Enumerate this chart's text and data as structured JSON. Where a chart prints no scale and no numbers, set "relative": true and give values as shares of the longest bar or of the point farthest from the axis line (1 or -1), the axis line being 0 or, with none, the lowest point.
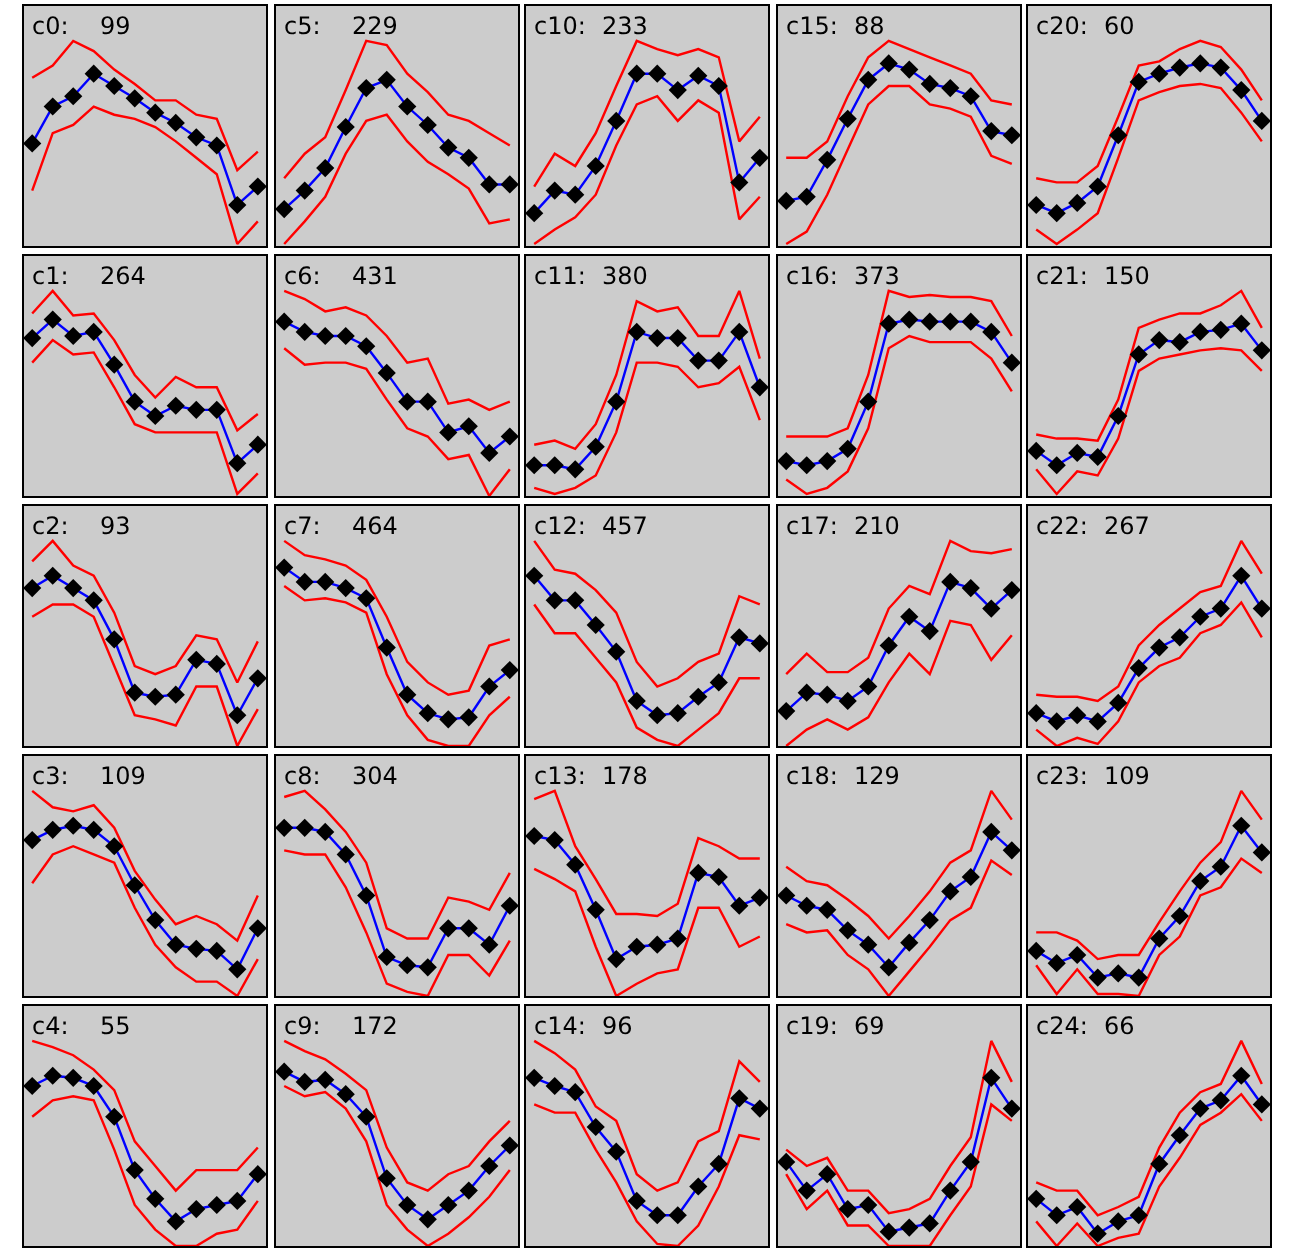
{
  "chart_data": [
    {
      "type": "line",
      "title": "c0:",
      "subtitle": "99",
      "relative": true,
      "categories": [
        null,
        null,
        null,
        null,
        null,
        null,
        null,
        null,
        null,
        null,
        null,
        null
      ],
      "series": [
        {
          "color": "#ff0000",
          "marker": "none",
          "values": [
            0.82,
            0.88,
            1.0,
            0.95,
            0.86,
            0.79,
            0.71,
            0.71,
            0.64,
            0.62,
            0.37,
            0.46
          ]
        },
        {
          "color": "#ff0000",
          "marker": "none",
          "values": [
            0.27,
            0.55,
            0.59,
            0.68,
            0.64,
            0.62,
            0.58,
            0.51,
            0.43,
            0.35,
            0.01,
            0.12
          ]
        },
        {
          "color": "#0000ff",
          "marker": "diamond",
          "values": [
            0.5,
            0.68,
            0.73,
            0.84,
            0.78,
            0.72,
            0.65,
            0.6,
            0.53,
            0.49,
            0.2,
            0.29
          ]
        }
      ]
    },
    {
      "type": "line",
      "title": "c5:",
      "subtitle": "229",
      "relative": true,
      "categories": [
        null,
        null,
        null,
        null,
        null,
        null,
        null,
        null,
        null,
        null,
        null,
        null
      ],
      "series": [
        {
          "color": "#ff0000",
          "marker": "none",
          "values": [
            0.33,
            0.45,
            0.53,
            0.76,
            1.0,
            0.98,
            0.84,
            0.75,
            0.64,
            0.61,
            0.55,
            0.49
          ]
        },
        {
          "color": "#ff0000",
          "marker": "none",
          "values": [
            0.01,
            0.12,
            0.24,
            0.45,
            0.61,
            0.64,
            0.51,
            0.41,
            0.35,
            0.28,
            0.11,
            0.13
          ]
        },
        {
          "color": "#0000ff",
          "marker": "diamond",
          "values": [
            0.18,
            0.27,
            0.38,
            0.58,
            0.77,
            0.81,
            0.68,
            0.59,
            0.48,
            0.43,
            0.3,
            0.3
          ]
        }
      ]
    },
    {
      "type": "line",
      "title": "c10:",
      "subtitle": "233",
      "relative": true,
      "categories": [
        null,
        null,
        null,
        null,
        null,
        null,
        null,
        null,
        null,
        null,
        null,
        null
      ],
      "series": [
        {
          "color": "#ff0000",
          "marker": "none",
          "values": [
            0.29,
            0.45,
            0.39,
            0.55,
            0.78,
            1.0,
            0.96,
            0.93,
            0.96,
            0.92,
            0.51,
            0.63
          ]
        },
        {
          "color": "#ff0000",
          "marker": "none",
          "values": [
            0.01,
            0.08,
            0.14,
            0.25,
            0.49,
            0.69,
            0.73,
            0.61,
            0.71,
            0.65,
            0.13,
            0.24
          ]
        },
        {
          "color": "#0000ff",
          "marker": "diamond",
          "values": [
            0.16,
            0.27,
            0.25,
            0.39,
            0.61,
            0.84,
            0.84,
            0.76,
            0.83,
            0.78,
            0.31,
            0.43
          ]
        }
      ]
    },
    {
      "type": "line",
      "title": "c15:",
      "subtitle": "88",
      "relative": true,
      "categories": [
        null,
        null,
        null,
        null,
        null,
        null,
        null,
        null,
        null,
        null,
        null,
        null
      ],
      "series": [
        {
          "color": "#ff0000",
          "marker": "none",
          "values": [
            0.43,
            0.43,
            0.51,
            0.73,
            0.92,
            1.0,
            0.96,
            0.92,
            0.88,
            0.84,
            0.71,
            0.69
          ]
        },
        {
          "color": "#ff0000",
          "marker": "none",
          "values": [
            0.01,
            0.07,
            0.25,
            0.47,
            0.69,
            0.78,
            0.78,
            0.69,
            0.67,
            0.63,
            0.44,
            0.4
          ]
        },
        {
          "color": "#0000ff",
          "marker": "diamond",
          "values": [
            0.22,
            0.24,
            0.42,
            0.62,
            0.81,
            0.89,
            0.86,
            0.79,
            0.77,
            0.73,
            0.56,
            0.54
          ]
        }
      ]
    },
    {
      "type": "line",
      "title": "c20:",
      "subtitle": "60",
      "relative": true,
      "categories": [
        null,
        null,
        null,
        null,
        null,
        null,
        null,
        null,
        null,
        null,
        null,
        null
      ],
      "series": [
        {
          "color": "#ff0000",
          "marker": "none",
          "values": [
            0.33,
            0.31,
            0.31,
            0.39,
            0.63,
            0.88,
            0.9,
            0.96,
            1.0,
            0.97,
            0.86,
            0.71
          ]
        },
        {
          "color": "#ff0000",
          "marker": "none",
          "values": [
            0.08,
            0.01,
            0.08,
            0.16,
            0.43,
            0.71,
            0.75,
            0.78,
            0.79,
            0.77,
            0.65,
            0.51
          ]
        },
        {
          "color": "#0000ff",
          "marker": "diamond",
          "values": [
            0.2,
            0.16,
            0.21,
            0.29,
            0.54,
            0.8,
            0.84,
            0.87,
            0.89,
            0.87,
            0.76,
            0.61
          ]
        }
      ]
    },
    {
      "type": "line",
      "title": "c1:",
      "subtitle": "264",
      "relative": true,
      "categories": [
        null,
        null,
        null,
        null,
        null,
        null,
        null,
        null,
        null,
        null,
        null,
        null
      ],
      "series": [
        {
          "color": "#ff0000",
          "marker": "none",
          "values": [
            0.89,
            1.0,
            0.88,
            0.89,
            0.76,
            0.59,
            0.48,
            0.58,
            0.53,
            0.53,
            0.32,
            0.4
          ]
        },
        {
          "color": "#ff0000",
          "marker": "none",
          "values": [
            0.65,
            0.76,
            0.69,
            0.7,
            0.53,
            0.35,
            0.31,
            0.31,
            0.31,
            0.31,
            0.01,
            0.11
          ]
        },
        {
          "color": "#0000ff",
          "marker": "diamond",
          "values": [
            0.77,
            0.86,
            0.78,
            0.8,
            0.64,
            0.46,
            0.39,
            0.44,
            0.42,
            0.42,
            0.16,
            0.25
          ]
        }
      ]
    },
    {
      "type": "line",
      "title": "c6:",
      "subtitle": "431",
      "relative": true,
      "categories": [
        null,
        null,
        null,
        null,
        null,
        null,
        null,
        null,
        null,
        null,
        null,
        null
      ],
      "series": [
        {
          "color": "#ff0000",
          "marker": "none",
          "values": [
            1.0,
            0.96,
            0.9,
            0.92,
            0.88,
            0.78,
            0.65,
            0.67,
            0.45,
            0.47,
            0.42,
            0.46
          ]
        },
        {
          "color": "#ff0000",
          "marker": "none",
          "values": [
            0.72,
            0.64,
            0.65,
            0.65,
            0.62,
            0.47,
            0.33,
            0.29,
            0.18,
            0.2,
            0.0,
            0.13
          ]
        },
        {
          "color": "#0000ff",
          "marker": "diamond",
          "values": [
            0.85,
            0.8,
            0.78,
            0.78,
            0.73,
            0.6,
            0.46,
            0.46,
            0.31,
            0.34,
            0.21,
            0.29
          ]
        }
      ]
    },
    {
      "type": "line",
      "title": "c11:",
      "subtitle": "380",
      "relative": true,
      "categories": [
        null,
        null,
        null,
        null,
        null,
        null,
        null,
        null,
        null,
        null,
        null,
        null
      ],
      "series": [
        {
          "color": "#ff0000",
          "marker": "none",
          "values": [
            0.25,
            0.27,
            0.23,
            0.35,
            0.59,
            0.95,
            0.9,
            0.92,
            0.78,
            0.78,
            1.0,
            0.67
          ]
        },
        {
          "color": "#ff0000",
          "marker": "none",
          "values": [
            0.04,
            0.01,
            0.04,
            0.1,
            0.31,
            0.65,
            0.65,
            0.63,
            0.53,
            0.55,
            0.63,
            0.37
          ]
        },
        {
          "color": "#0000ff",
          "marker": "diamond",
          "values": [
            0.15,
            0.15,
            0.13,
            0.24,
            0.46,
            0.8,
            0.77,
            0.77,
            0.66,
            0.66,
            0.8,
            0.53
          ]
        }
      ]
    },
    {
      "type": "line",
      "title": "c16:",
      "subtitle": "373",
      "relative": true,
      "categories": [
        null,
        null,
        null,
        null,
        null,
        null,
        null,
        null,
        null,
        null,
        null,
        null
      ],
      "series": [
        {
          "color": "#ff0000",
          "marker": "none",
          "values": [
            0.29,
            0.29,
            0.29,
            0.33,
            0.59,
            1.0,
            0.97,
            0.98,
            0.97,
            0.97,
            0.95,
            0.78
          ]
        },
        {
          "color": "#ff0000",
          "marker": "none",
          "values": [
            0.08,
            0.01,
            0.04,
            0.12,
            0.33,
            0.72,
            0.78,
            0.75,
            0.75,
            0.75,
            0.67,
            0.51
          ]
        },
        {
          "color": "#0000ff",
          "marker": "diamond",
          "values": [
            0.17,
            0.15,
            0.17,
            0.23,
            0.46,
            0.84,
            0.86,
            0.85,
            0.85,
            0.85,
            0.8,
            0.65
          ]
        }
      ]
    },
    {
      "type": "line",
      "title": "c21:",
      "subtitle": "150",
      "relative": true,
      "categories": [
        null,
        null,
        null,
        null,
        null,
        null,
        null,
        null,
        null,
        null,
        null,
        null
      ],
      "series": [
        {
          "color": "#ff0000",
          "marker": "none",
          "values": [
            0.3,
            0.28,
            0.28,
            0.27,
            0.47,
            0.82,
            0.86,
            0.89,
            0.89,
            0.93,
            1.0,
            0.82
          ]
        },
        {
          "color": "#ff0000",
          "marker": "none",
          "values": [
            0.13,
            0.01,
            0.12,
            0.1,
            0.28,
            0.61,
            0.67,
            0.69,
            0.71,
            0.72,
            0.71,
            0.61
          ]
        },
        {
          "color": "#0000ff",
          "marker": "diamond",
          "values": [
            0.22,
            0.15,
            0.21,
            0.19,
            0.39,
            0.69,
            0.76,
            0.75,
            0.8,
            0.81,
            0.84,
            0.71
          ]
        }
      ]
    },
    {
      "type": "line",
      "title": "c2:",
      "subtitle": "93",
      "relative": true,
      "categories": [
        null,
        null,
        null,
        null,
        null,
        null,
        null,
        null,
        null,
        null,
        null,
        null
      ],
      "series": [
        {
          "color": "#ff0000",
          "marker": "none",
          "values": [
            0.9,
            1.0,
            0.88,
            0.83,
            0.65,
            0.39,
            0.35,
            0.39,
            0.54,
            0.52,
            0.31,
            0.51
          ]
        },
        {
          "color": "#ff0000",
          "marker": "none",
          "values": [
            0.63,
            0.69,
            0.69,
            0.63,
            0.39,
            0.15,
            0.13,
            0.1,
            0.29,
            0.29,
            0.0,
            0.18
          ]
        },
        {
          "color": "#0000ff",
          "marker": "diamond",
          "values": [
            0.77,
            0.83,
            0.77,
            0.71,
            0.52,
            0.26,
            0.24,
            0.25,
            0.42,
            0.4,
            0.15,
            0.33
          ]
        }
      ]
    },
    {
      "type": "line",
      "title": "c7:",
      "subtitle": "464",
      "relative": true,
      "categories": [
        null,
        null,
        null,
        null,
        null,
        null,
        null,
        null,
        null,
        null,
        null,
        null
      ],
      "series": [
        {
          "color": "#ff0000",
          "marker": "none",
          "values": [
            1.0,
            0.93,
            0.91,
            0.88,
            0.81,
            0.63,
            0.41,
            0.31,
            0.25,
            0.27,
            0.49,
            0.52
          ]
        },
        {
          "color": "#ff0000",
          "marker": "none",
          "values": [
            0.78,
            0.71,
            0.72,
            0.7,
            0.65,
            0.35,
            0.15,
            0.03,
            0.0,
            0.0,
            0.15,
            0.24
          ]
        },
        {
          "color": "#0000ff",
          "marker": "diamond",
          "values": [
            0.87,
            0.8,
            0.8,
            0.77,
            0.72,
            0.48,
            0.25,
            0.16,
            0.13,
            0.14,
            0.29,
            0.37
          ]
        }
      ]
    },
    {
      "type": "line",
      "title": "c12:",
      "subtitle": "457",
      "relative": true,
      "categories": [
        null,
        null,
        null,
        null,
        null,
        null,
        null,
        null,
        null,
        null,
        null,
        null
      ],
      "series": [
        {
          "color": "#ff0000",
          "marker": "none",
          "values": [
            1.0,
            0.86,
            0.84,
            0.76,
            0.65,
            0.41,
            0.29,
            0.33,
            0.41,
            0.45,
            0.73,
            0.69
          ]
        },
        {
          "color": "#ff0000",
          "marker": "none",
          "values": [
            0.69,
            0.55,
            0.55,
            0.43,
            0.31,
            0.09,
            0.03,
            0.0,
            0.08,
            0.16,
            0.33,
            0.33
          ]
        },
        {
          "color": "#0000ff",
          "marker": "diamond",
          "values": [
            0.83,
            0.71,
            0.71,
            0.59,
            0.46,
            0.22,
            0.15,
            0.16,
            0.24,
            0.31,
            0.53,
            0.5
          ]
        }
      ]
    },
    {
      "type": "line",
      "title": "c17:",
      "subtitle": "210",
      "relative": true,
      "categories": [
        null,
        null,
        null,
        null,
        null,
        null,
        null,
        null,
        null,
        null,
        null,
        null
      ],
      "series": [
        {
          "color": "#ff0000",
          "marker": "none",
          "values": [
            0.35,
            0.45,
            0.36,
            0.36,
            0.43,
            0.67,
            0.78,
            0.74,
            1.0,
            0.95,
            0.94,
            0.96
          ]
        },
        {
          "color": "#ff0000",
          "marker": "none",
          "values": [
            0.0,
            0.08,
            0.13,
            0.08,
            0.14,
            0.31,
            0.45,
            0.35,
            0.61,
            0.59,
            0.42,
            0.54
          ]
        },
        {
          "color": "#0000ff",
          "marker": "diamond",
          "values": [
            0.17,
            0.26,
            0.25,
            0.22,
            0.29,
            0.49,
            0.63,
            0.56,
            0.8,
            0.77,
            0.67,
            0.76
          ]
        }
      ]
    },
    {
      "type": "line",
      "title": "c22:",
      "subtitle": "267",
      "relative": true,
      "categories": [
        null,
        null,
        null,
        null,
        null,
        null,
        null,
        null,
        null,
        null,
        null,
        null
      ],
      "series": [
        {
          "color": "#ff0000",
          "marker": "none",
          "values": [
            0.25,
            0.24,
            0.24,
            0.22,
            0.29,
            0.49,
            0.59,
            0.67,
            0.75,
            0.78,
            1.0,
            0.84
          ]
        },
        {
          "color": "#ff0000",
          "marker": "none",
          "values": [
            0.08,
            0.0,
            0.04,
            0.01,
            0.12,
            0.31,
            0.39,
            0.43,
            0.55,
            0.59,
            0.7,
            0.53
          ]
        },
        {
          "color": "#0000ff",
          "marker": "diamond",
          "values": [
            0.16,
            0.12,
            0.15,
            0.12,
            0.21,
            0.38,
            0.48,
            0.53,
            0.63,
            0.67,
            0.83,
            0.67
          ]
        }
      ]
    },
    {
      "type": "line",
      "title": "c3:",
      "subtitle": "109",
      "relative": true,
      "categories": [
        null,
        null,
        null,
        null,
        null,
        null,
        null,
        null,
        null,
        null,
        null,
        null
      ],
      "series": [
        {
          "color": "#ff0000",
          "marker": "none",
          "values": [
            1.0,
            0.92,
            0.9,
            0.93,
            0.82,
            0.61,
            0.47,
            0.35,
            0.39,
            0.35,
            0.27,
            0.49
          ]
        },
        {
          "color": "#ff0000",
          "marker": "none",
          "values": [
            0.55,
            0.69,
            0.73,
            0.69,
            0.65,
            0.43,
            0.25,
            0.14,
            0.07,
            0.07,
            0.0,
            0.18
          ]
        },
        {
          "color": "#0000ff",
          "marker": "diamond",
          "values": [
            0.76,
            0.81,
            0.83,
            0.81,
            0.73,
            0.54,
            0.37,
            0.25,
            0.23,
            0.22,
            0.13,
            0.33
          ]
        }
      ]
    },
    {
      "type": "line",
      "title": "c8:",
      "subtitle": "304",
      "relative": true,
      "categories": [
        null,
        null,
        null,
        null,
        null,
        null,
        null,
        null,
        null,
        null,
        null,
        null
      ],
      "series": [
        {
          "color": "#ff0000",
          "marker": "none",
          "values": [
            0.97,
            1.0,
            0.91,
            0.8,
            0.65,
            0.33,
            0.28,
            0.28,
            0.48,
            0.46,
            0.42,
            0.6
          ]
        },
        {
          "color": "#ff0000",
          "marker": "none",
          "values": [
            0.71,
            0.69,
            0.69,
            0.53,
            0.31,
            0.06,
            0.02,
            0.0,
            0.2,
            0.2,
            0.1,
            0.27
          ]
        },
        {
          "color": "#0000ff",
          "marker": "diamond",
          "values": [
            0.82,
            0.82,
            0.8,
            0.69,
            0.49,
            0.19,
            0.15,
            0.14,
            0.33,
            0.33,
            0.25,
            0.44
          ]
        }
      ]
    },
    {
      "type": "line",
      "title": "c13:",
      "subtitle": "178",
      "relative": true,
      "categories": [
        null,
        null,
        null,
        null,
        null,
        null,
        null,
        null,
        null,
        null,
        null,
        null
      ],
      "series": [
        {
          "color": "#ff0000",
          "marker": "none",
          "values": [
            0.96,
            1.0,
            0.73,
            0.57,
            0.4,
            0.4,
            0.39,
            0.45,
            0.77,
            0.73,
            0.67,
            0.67
          ]
        },
        {
          "color": "#ff0000",
          "marker": "none",
          "values": [
            0.62,
            0.57,
            0.51,
            0.24,
            0.0,
            0.06,
            0.11,
            0.13,
            0.43,
            0.43,
            0.24,
            0.29
          ]
        },
        {
          "color": "#0000ff",
          "marker": "diamond",
          "values": [
            0.78,
            0.76,
            0.64,
            0.42,
            0.18,
            0.24,
            0.25,
            0.28,
            0.6,
            0.58,
            0.44,
            0.48
          ]
        }
      ]
    },
    {
      "type": "line",
      "title": "c18:",
      "subtitle": "129",
      "relative": true,
      "categories": [
        null,
        null,
        null,
        null,
        null,
        null,
        null,
        null,
        null,
        null,
        null,
        null
      ],
      "series": [
        {
          "color": "#ff0000",
          "marker": "none",
          "values": [
            0.63,
            0.56,
            0.54,
            0.47,
            0.39,
            0.28,
            0.39,
            0.51,
            0.65,
            0.71,
            1.0,
            0.86
          ]
        },
        {
          "color": "#ff0000",
          "marker": "none",
          "values": [
            0.35,
            0.31,
            0.32,
            0.2,
            0.13,
            0.0,
            0.12,
            0.24,
            0.37,
            0.43,
            0.66,
            0.59
          ]
        },
        {
          "color": "#0000ff",
          "marker": "diamond",
          "values": [
            0.49,
            0.44,
            0.42,
            0.32,
            0.25,
            0.14,
            0.26,
            0.37,
            0.51,
            0.58,
            0.8,
            0.71
          ]
        }
      ]
    },
    {
      "type": "line",
      "title": "c23:",
      "subtitle": "109",
      "relative": true,
      "categories": [
        null,
        null,
        null,
        null,
        null,
        null,
        null,
        null,
        null,
        null,
        null,
        null
      ],
      "series": [
        {
          "color": "#ff0000",
          "marker": "none",
          "values": [
            0.31,
            0.31,
            0.27,
            0.18,
            0.2,
            0.2,
            0.36,
            0.51,
            0.65,
            0.75,
            1.0,
            0.86
          ]
        },
        {
          "color": "#ff0000",
          "marker": "none",
          "values": [
            0.15,
            0.01,
            0.13,
            0.01,
            0.01,
            0.0,
            0.2,
            0.29,
            0.49,
            0.53,
            0.67,
            0.6
          ]
        },
        {
          "color": "#0000ff",
          "marker": "diamond",
          "values": [
            0.22,
            0.16,
            0.2,
            0.09,
            0.11,
            0.09,
            0.28,
            0.39,
            0.56,
            0.63,
            0.83,
            0.7
          ]
        }
      ]
    },
    {
      "type": "line",
      "title": "c4:",
      "subtitle": "55",
      "relative": true,
      "categories": [
        null,
        null,
        null,
        null,
        null,
        null,
        null,
        null,
        null,
        null,
        null,
        null
      ],
      "series": [
        {
          "color": "#ff0000",
          "marker": "none",
          "values": [
            1.0,
            0.97,
            0.93,
            0.86,
            0.76,
            0.51,
            0.39,
            0.27,
            0.37,
            0.37,
            0.37,
            0.48
          ]
        },
        {
          "color": "#ff0000",
          "marker": "none",
          "values": [
            0.63,
            0.71,
            0.73,
            0.71,
            0.47,
            0.2,
            0.08,
            0.0,
            0.0,
            0.06,
            0.08,
            0.22
          ]
        },
        {
          "color": "#0000ff",
          "marker": "diamond",
          "values": [
            0.78,
            0.83,
            0.82,
            0.78,
            0.63,
            0.37,
            0.23,
            0.12,
            0.18,
            0.2,
            0.22,
            0.35
          ]
        }
      ]
    },
    {
      "type": "line",
      "title": "c9:",
      "subtitle": "172",
      "relative": true,
      "categories": [
        null,
        null,
        null,
        null,
        null,
        null,
        null,
        null,
        null,
        null,
        null,
        null
      ],
      "series": [
        {
          "color": "#ff0000",
          "marker": "none",
          "values": [
            1.0,
            0.95,
            0.91,
            0.84,
            0.76,
            0.48,
            0.31,
            0.27,
            0.35,
            0.39,
            0.51,
            0.61
          ]
        },
        {
          "color": "#ff0000",
          "marker": "none",
          "values": [
            0.78,
            0.73,
            0.75,
            0.67,
            0.51,
            0.2,
            0.08,
            0.0,
            0.06,
            0.14,
            0.24,
            0.37
          ]
        },
        {
          "color": "#0000ff",
          "marker": "diamond",
          "values": [
            0.85,
            0.8,
            0.81,
            0.74,
            0.63,
            0.33,
            0.2,
            0.13,
            0.2,
            0.27,
            0.39,
            0.49
          ]
        }
      ]
    },
    {
      "type": "line",
      "title": "c14:",
      "subtitle": "96",
      "relative": true,
      "categories": [
        null,
        null,
        null,
        null,
        null,
        null,
        null,
        null,
        null,
        null,
        null,
        null
      ],
      "series": [
        {
          "color": "#ff0000",
          "marker": "none",
          "values": [
            1.0,
            0.94,
            0.86,
            0.68,
            0.61,
            0.35,
            0.27,
            0.31,
            0.51,
            0.56,
            0.9,
            0.8
          ]
        },
        {
          "color": "#ff0000",
          "marker": "none",
          "values": [
            0.69,
            0.65,
            0.65,
            0.47,
            0.31,
            0.12,
            0.01,
            0.0,
            0.1,
            0.29,
            0.54,
            0.52
          ]
        },
        {
          "color": "#0000ff",
          "marker": "diamond",
          "values": [
            0.82,
            0.78,
            0.75,
            0.58,
            0.46,
            0.22,
            0.15,
            0.15,
            0.29,
            0.4,
            0.72,
            0.67
          ]
        }
      ]
    },
    {
      "type": "line",
      "title": "c19:",
      "subtitle": "69",
      "relative": true,
      "categories": [
        null,
        null,
        null,
        null,
        null,
        null,
        null,
        null,
        null,
        null,
        null,
        null
      ],
      "series": [
        {
          "color": "#ff0000",
          "marker": "none",
          "values": [
            0.47,
            0.39,
            0.43,
            0.27,
            0.27,
            0.16,
            0.18,
            0.23,
            0.39,
            0.53,
            1.0,
            0.8
          ]
        },
        {
          "color": "#ff0000",
          "marker": "none",
          "values": [
            0.35,
            0.18,
            0.27,
            0.1,
            0.1,
            0.0,
            0.0,
            0.0,
            0.15,
            0.29,
            0.69,
            0.61
          ]
        },
        {
          "color": "#0000ff",
          "marker": "diamond",
          "values": [
            0.41,
            0.27,
            0.35,
            0.18,
            0.2,
            0.07,
            0.09,
            0.11,
            0.27,
            0.41,
            0.82,
            0.67
          ]
        }
      ]
    },
    {
      "type": "line",
      "title": "c24:",
      "subtitle": "66",
      "relative": true,
      "categories": [
        null,
        null,
        null,
        null,
        null,
        null,
        null,
        null,
        null,
        null,
        null,
        null
      ],
      "series": [
        {
          "color": "#ff0000",
          "marker": "none",
          "values": [
            0.31,
            0.27,
            0.27,
            0.15,
            0.19,
            0.24,
            0.48,
            0.65,
            0.75,
            0.79,
            1.0,
            0.79
          ]
        },
        {
          "color": "#ff0000",
          "marker": "none",
          "values": [
            0.12,
            0.0,
            0.11,
            0.0,
            0.04,
            0.06,
            0.29,
            0.43,
            0.59,
            0.65,
            0.74,
            0.61
          ]
        },
        {
          "color": "#0000ff",
          "marker": "diamond",
          "values": [
            0.23,
            0.15,
            0.19,
            0.06,
            0.12,
            0.15,
            0.4,
            0.54,
            0.67,
            0.71,
            0.83,
            0.69
          ]
        }
      ]
    }
  ]
}
